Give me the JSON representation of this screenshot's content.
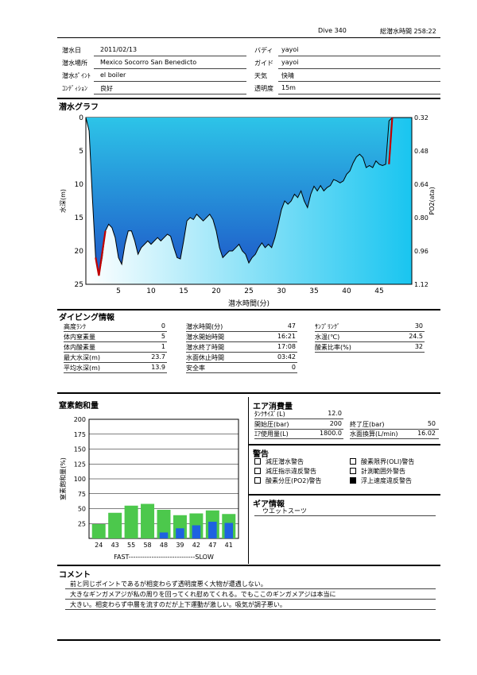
{
  "header": {
    "dive_no": "Dive 340",
    "total_time": "総潜水時間 258:22"
  },
  "info": {
    "date": {
      "label": "潜水日",
      "value": "2011/02/13"
    },
    "place": {
      "label": "潜水場所",
      "value": "Mexico Socorro  San Benedicto"
    },
    "point": {
      "label": "潜水ﾎﾟｲﾝﾄ",
      "value": "el boiler"
    },
    "condition": {
      "label": "ｺﾝﾃﾞｨｼｮﾝ",
      "value": "良好"
    },
    "buddy": {
      "label": "バディ",
      "value": "yayoi"
    },
    "guide": {
      "label": "ガイド",
      "value": "yayoi"
    },
    "weather": {
      "label": "天気",
      "value": "快晴"
    },
    "visibility": {
      "label": "透明度",
      "value": "15m"
    }
  },
  "graph": {
    "title": "潜水グラフ",
    "chart_data": {
      "type": "area",
      "x": [
        0,
        0.5,
        1,
        1.5,
        2,
        2.5,
        3,
        3.5,
        4,
        4.5,
        5,
        5.5,
        6,
        6.5,
        7,
        7.5,
        8,
        8.5,
        9,
        9.5,
        10,
        10.5,
        11,
        11.5,
        12,
        12.5,
        13,
        13.5,
        14,
        14.5,
        15,
        15.5,
        16,
        16.5,
        17,
        17.5,
        18,
        18.5,
        19,
        19.5,
        20,
        20.5,
        21,
        21.5,
        22,
        22.5,
        23,
        23.5,
        24,
        24.5,
        25,
        25.5,
        26,
        26.5,
        27,
        27.5,
        28,
        28.5,
        29,
        29.5,
        30,
        30.5,
        31,
        31.5,
        32,
        32.5,
        33,
        33.5,
        34,
        34.5,
        35,
        35.5,
        36,
        36.5,
        37,
        37.5,
        38,
        38.5,
        39,
        39.5,
        40,
        40.5,
        41,
        41.5,
        42,
        42.5,
        43,
        43.5,
        44,
        44.5,
        45,
        45.5,
        46,
        46.5,
        47
      ],
      "depth": [
        0,
        2,
        12,
        21,
        23.7,
        21,
        17,
        16,
        16.5,
        18,
        21,
        22,
        19,
        17,
        17,
        18.5,
        20.5,
        19.5,
        19,
        18.5,
        19,
        18.5,
        18,
        18.5,
        18,
        17.5,
        17.8,
        19.5,
        21,
        21.2,
        18.5,
        15.5,
        15,
        15.3,
        14.5,
        15,
        15.5,
        15,
        14.5,
        15.3,
        17,
        19.5,
        21,
        20.5,
        20,
        20,
        19.5,
        19,
        20,
        20.5,
        21.8,
        21,
        20.5,
        19.5,
        18.8,
        19.5,
        19,
        19.5,
        18,
        16,
        13.8,
        12.5,
        13,
        12.5,
        11.5,
        12,
        11,
        12.5,
        13.5,
        11.5,
        10.3,
        11,
        10.2,
        11,
        10.5,
        10.2,
        9.3,
        9.5,
        9.8,
        9.5,
        8.5,
        8,
        6.8,
        5.9,
        5.5,
        6,
        7.5,
        7.2,
        7.5,
        6.5,
        7,
        7.2,
        7,
        0.5,
        0
      ],
      "red_segments": [
        [
          [
            1.5,
            21
          ],
          [
            2,
            23.7
          ],
          [
            3,
            17
          ]
        ],
        [
          [
            46.5,
            7
          ],
          [
            47,
            0
          ]
        ]
      ],
      "xlabel": "潜水時間(分)",
      "ylabel": "水深(m)",
      "y2label": "PO2(ata)",
      "xlim": [
        0,
        50
      ],
      "ylim": [
        0,
        25
      ],
      "x_ticks": [
        "5",
        "10",
        "15",
        "20",
        "25",
        "30",
        "35",
        "40",
        "45"
      ],
      "y_ticks": [
        "0",
        "5",
        "10",
        "15",
        "20",
        "25"
      ],
      "y2_ticks": [
        "0.32",
        "0.48",
        "0.64",
        "0.80",
        "0.96",
        "1.12"
      ],
      "fill_top": "#2dc4e8",
      "fill_bottom": "#1e57c8",
      "line_color": "#000000",
      "red_color": "#c00000",
      "bg_left": "#ffffff",
      "bg_right": "#19c5f0"
    }
  },
  "diving_info": {
    "title": "ダイビング情報",
    "col1": [
      {
        "label": "高度ﾗﾝｸ",
        "value": "0"
      },
      {
        "label": "体内窒素量",
        "value": "5"
      },
      {
        "label": "体内酸素量",
        "value": "1"
      },
      {
        "label": "最大水深(m)",
        "value": "23.7"
      },
      {
        "label": "平均水深(m)",
        "value": "13.9"
      }
    ],
    "col2": [
      {
        "label": "潜水時間(分)",
        "value": "47"
      },
      {
        "label": "潜水開始時間",
        "value": "16:21"
      },
      {
        "label": "潜水終了時間",
        "value": "17:08"
      },
      {
        "label": "水面休止時間",
        "value": "03:42"
      },
      {
        "label": "安全率",
        "value": "0"
      }
    ],
    "col3": [
      {
        "label": "ｻﾝﾌﾟﾘﾝｸﾞ",
        "value": "30"
      },
      {
        "label": "水温(℃)",
        "value": "24.5"
      },
      {
        "label": "酸素比率(%)",
        "value": "32"
      }
    ]
  },
  "nitrogen": {
    "title": "窒素飽和量",
    "chart_data": {
      "type": "bar",
      "categories": [
        "24",
        "43",
        "55",
        "58",
        "48",
        "39",
        "42",
        "47",
        "41"
      ],
      "series": [
        {
          "values": [
            24,
            43,
            55,
            58,
            48,
            39,
            42,
            47,
            41
          ],
          "color": "#4cc84c"
        },
        {
          "values": [
            0,
            0,
            0,
            0,
            10,
            17,
            22,
            28,
            26
          ],
          "color": "#1e62e0"
        }
      ],
      "ylabel": "窒素飽和量(%)",
      "ylim": [
        0,
        200
      ],
      "y_ticks": [
        "200",
        "175",
        "150",
        "125",
        "100",
        "75",
        "50",
        "25"
      ],
      "xnote": "FAST-----------------------------SLOW"
    }
  },
  "air": {
    "title": "エア消費量",
    "tank_size": {
      "label": "ﾀﾝｸｻｲｽﾞ(L)",
      "value": "12.0"
    },
    "start_pressure": {
      "label": "開始圧(bar)",
      "value": "200"
    },
    "end_pressure": {
      "label": "終了圧(bar)",
      "value": "50"
    },
    "air_used": {
      "label": "ｴｱ使用量(L)",
      "value": "1800.0"
    },
    "surface_rate": {
      "label": "水面換算(L/min)",
      "value": "16.02"
    }
  },
  "warnings": {
    "title": "警告",
    "items": [
      {
        "label": "減圧潜水警告",
        "checked": false
      },
      {
        "label": "酸素限界(OLI)警告",
        "checked": false
      },
      {
        "label": "減圧指示違反警告",
        "checked": false
      },
      {
        "label": "計測範囲外警告",
        "checked": false
      },
      {
        "label": "酸素分圧(PO2)警告",
        "checked": false
      },
      {
        "label": "浮上速度違反警告",
        "checked": true
      }
    ]
  },
  "gear": {
    "title": "ギア情報",
    "value": "ウエットスーツ"
  },
  "comment": {
    "title": "コメント",
    "lines": [
      "前と同じポイントであるが相変わらず透明度悪く大物が遭遇しない。",
      "大きなギンガメアジが私の周りを回ってくれ慰めてくれる。でもここのギンガメアジは本当に",
      "大きい。相変わらず中層を流すのだが上下運動が激しい。吸気が調子悪い。"
    ]
  }
}
